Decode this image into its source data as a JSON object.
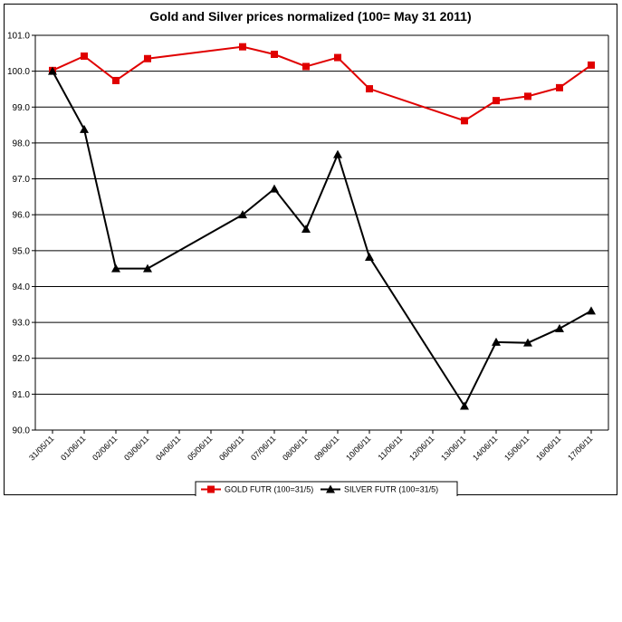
{
  "chart_data": {
    "type": "line",
    "title": "Gold and Silver prices normalized (100= May 31 2011)",
    "xlabel": "",
    "ylabel": "",
    "ylim": [
      90.0,
      101.0
    ],
    "yticks": [
      "90.0",
      "91.0",
      "92.0",
      "93.0",
      "94.0",
      "95.0",
      "96.0",
      "97.0",
      "98.0",
      "99.0",
      "100.0",
      "101.0"
    ],
    "categories": [
      "31/05/11",
      "01/06/11",
      "02/06/11",
      "03/06/11",
      "04/06/11",
      "05/06/11",
      "06/06/11",
      "07/06/11",
      "08/06/11",
      "09/06/11",
      "10/06/11",
      "11/06/11",
      "12/06/11",
      "13/06/11",
      "14/06/11",
      "15/06/11",
      "16/06/11",
      "17/06/11"
    ],
    "grid": "horizontal",
    "legend": "bottom",
    "series": [
      {
        "name": "GOLD  FUTR (100=31/5)",
        "color": "#e00000",
        "marker": "square",
        "values": [
          100.02,
          100.42,
          99.74,
          100.35,
          null,
          null,
          100.68,
          100.47,
          100.13,
          100.38,
          99.51,
          null,
          null,
          98.62,
          99.18,
          99.3,
          99.54,
          100.17
        ]
      },
      {
        "name": "SILVER  FUTR (100=31/5)",
        "color": "#000000",
        "marker": "triangle",
        "values": [
          100.0,
          98.38,
          94.5,
          94.5,
          null,
          null,
          96.0,
          96.72,
          95.6,
          97.68,
          94.82,
          null,
          null,
          90.67,
          92.45,
          92.43,
          92.83,
          93.32
        ]
      }
    ]
  }
}
